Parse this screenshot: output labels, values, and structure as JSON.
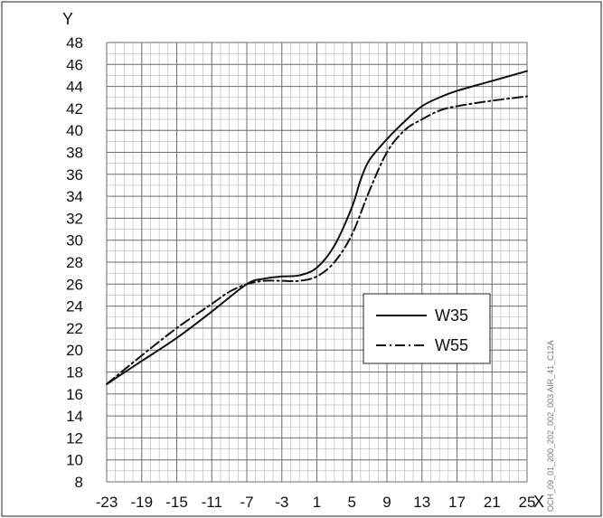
{
  "chart_data": {
    "type": "line",
    "xlabel": "X",
    "ylabel": "Y",
    "xlim": [
      -23,
      25
    ],
    "ylim": [
      8,
      48
    ],
    "x_ticks": [
      -23,
      -19,
      -15,
      -11,
      -7,
      -3,
      1,
      5,
      9,
      13,
      17,
      21,
      25
    ],
    "y_ticks": [
      8,
      10,
      12,
      14,
      16,
      18,
      20,
      22,
      24,
      26,
      28,
      30,
      32,
      34,
      36,
      38,
      40,
      42,
      44,
      46,
      48
    ],
    "minor_grid_step_x": 1,
    "minor_grid_step_y": 1,
    "grid": true,
    "legend_position": "center-right",
    "side_code": "OCH_09_01_200_202_002_003 AIR_41_C12A",
    "series": [
      {
        "name": "W35",
        "line_style": "solid",
        "color": "#111111",
        "points": [
          [
            -23,
            16.9
          ],
          [
            -19,
            19.0
          ],
          [
            -15,
            21.1
          ],
          [
            -11,
            23.5
          ],
          [
            -7,
            26.0
          ],
          [
            -5,
            26.5
          ],
          [
            -3,
            26.7
          ],
          [
            -1,
            26.8
          ],
          [
            1,
            27.5
          ],
          [
            3,
            29.5
          ],
          [
            5,
            33.0
          ],
          [
            6,
            35.5
          ],
          [
            7,
            37.3
          ],
          [
            9,
            39.2
          ],
          [
            11,
            40.8
          ],
          [
            13,
            42.2
          ],
          [
            15,
            43.0
          ],
          [
            17,
            43.6
          ],
          [
            21,
            44.5
          ],
          [
            25,
            45.4
          ]
        ]
      },
      {
        "name": "W55",
        "line_style": "dash-dot",
        "color": "#111111",
        "points": [
          [
            -23,
            16.9
          ],
          [
            -19,
            19.5
          ],
          [
            -15,
            22.0
          ],
          [
            -11,
            24.2
          ],
          [
            -9,
            25.3
          ],
          [
            -7,
            26.0
          ],
          [
            -5,
            26.3
          ],
          [
            -3,
            26.3
          ],
          [
            -1,
            26.3
          ],
          [
            1,
            26.7
          ],
          [
            3,
            28.0
          ],
          [
            5,
            30.5
          ],
          [
            7,
            34.5
          ],
          [
            9,
            38.0
          ],
          [
            11,
            40.0
          ],
          [
            13,
            41.0
          ],
          [
            15,
            41.8
          ],
          [
            17,
            42.2
          ],
          [
            21,
            42.7
          ],
          [
            25,
            43.1
          ]
        ]
      }
    ]
  }
}
